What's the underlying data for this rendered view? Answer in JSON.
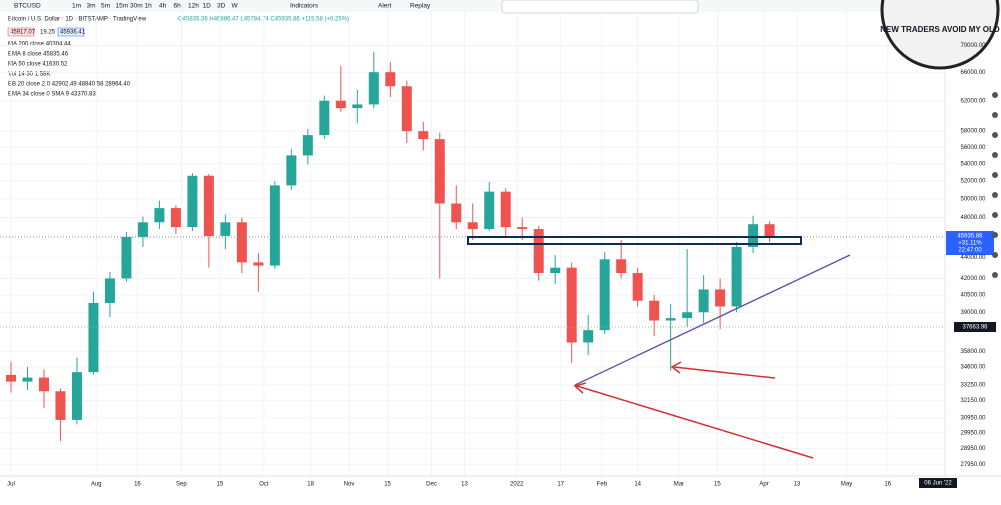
{
  "toolbar": {
    "symbol": "BTCUSD",
    "intervals": [
      "1m",
      "3m",
      "5m",
      "15m",
      "30m",
      "1h",
      "4h",
      "6h",
      "12h",
      "1D",
      "3D",
      "W"
    ],
    "indicators": "Indicators",
    "alert": "Alert",
    "replay": "Replay"
  },
  "legend": {
    "title": "Bitcoin / U.S. Dollar · 1D · BITSTAMP · TradingView",
    "ohlc": "O45835.36 H46886.47 L45784.74 C45935.86 +115.58 (+0.25%)",
    "bid": "45917.07",
    "spread": "19.25",
    "ask": "45936.41",
    "studies": [
      "MA 200 close 40304.44",
      "EMA 8 close 45835.46",
      "MA 50 close 41630.52",
      "Vol 14 30 1.58K",
      "BB 20 close 2 0 42902.49 48840.58 28964.40",
      "EMA 34 close 0 SMA 9 43370.83"
    ]
  },
  "price_labels": {
    "last": "45935.86",
    "change": "+31.11%",
    "countdown": "22:47:00",
    "marker": "37663.96"
  },
  "date_label": "06 Jun '22",
  "logo": "NEW TRADERS AVOID MY OLD",
  "chart_data": {
    "type": "candlestick",
    "log_scale": true,
    "grid": true,
    "up_color": "#26a69a",
    "down_color": "#ef5350",
    "x": [
      0,
      6,
      12,
      18,
      24,
      30,
      36,
      42,
      48,
      54,
      60,
      66,
      72,
      78,
      84,
      90,
      96,
      102,
      108,
      114,
      120,
      126,
      132,
      138,
      144,
      150,
      156,
      162,
      168,
      174,
      180,
      186,
      192,
      198,
      204,
      210,
      216,
      222,
      228,
      234,
      240,
      246,
      252,
      258,
      264,
      270,
      276
    ],
    "open": [
      34000,
      33500,
      33800,
      32800,
      30800,
      34200,
      39800,
      42000,
      46000,
      47500,
      49000,
      47000,
      52600,
      46100,
      47500,
      43500,
      43200,
      51500,
      55000,
      57500,
      62000,
      61000,
      61500,
      66000,
      64000,
      58000,
      57000,
      49500,
      47500,
      46800,
      50800,
      47000,
      46800,
      42500,
      43000,
      36500,
      37500,
      43800,
      42500,
      40000,
      38300,
      38500,
      39000,
      41000,
      39500,
      45000,
      47300
    ],
    "high": [
      35000,
      34600,
      34400,
      33000,
      35300,
      40800,
      42600,
      46500,
      48100,
      49800,
      49300,
      52900,
      52800,
      48300,
      48000,
      44400,
      52000,
      55800,
      58300,
      62700,
      66900,
      63500,
      69000,
      67500,
      64800,
      59200,
      57800,
      51500,
      49500,
      51900,
      51200,
      48000,
      47100,
      44200,
      43500,
      38800,
      44500,
      45700,
      43000,
      40500,
      39700,
      44800,
      42300,
      42000,
      45500,
      48200,
      47600
    ],
    "low": [
      32700,
      32900,
      31600,
      29400,
      30500,
      34000,
      38600,
      41700,
      45000,
      46800,
      46300,
      46600,
      43000,
      44800,
      42500,
      40800,
      42900,
      51000,
      53900,
      57000,
      60500,
      59000,
      61000,
      62500,
      56500,
      55600,
      42000,
      46800,
      45700,
      46600,
      46000,
      45700,
      41800,
      41500,
      34900,
      35500,
      37200,
      42000,
      39500,
      37000,
      34300,
      37800,
      38100,
      37600,
      39000,
      44400,
      45500
    ],
    "close": [
      33500,
      33800,
      32800,
      30800,
      34200,
      39800,
      42000,
      46000,
      47500,
      49000,
      47000,
      52600,
      46100,
      47500,
      43500,
      43200,
      51500,
      55000,
      57500,
      62000,
      61000,
      61500,
      66000,
      64000,
      58000,
      57000,
      49500,
      47500,
      46800,
      50800,
      47000,
      46800,
      42500,
      43000,
      36500,
      37500,
      43800,
      42500,
      40000,
      38300,
      38500,
      39000,
      41000,
      39500,
      45000,
      47300,
      45935.86
    ],
    "xlim": [
      -4,
      338
    ],
    "ylim": [
      27300,
      74000
    ],
    "xticks": [
      {
        "value": 0,
        "label": "Jul"
      },
      {
        "value": 31,
        "label": "Aug"
      },
      {
        "value": 46,
        "label": "16"
      },
      {
        "value": 62,
        "label": "Sep"
      },
      {
        "value": 76,
        "label": "15"
      },
      {
        "value": 92,
        "label": "Oct"
      },
      {
        "value": 109,
        "label": "18"
      },
      {
        "value": 123,
        "label": "Nov"
      },
      {
        "value": 137,
        "label": "15"
      },
      {
        "value": 153,
        "label": "Dec"
      },
      {
        "value": 165,
        "label": "13"
      },
      {
        "value": 184,
        "label": "2022"
      },
      {
        "value": 200,
        "label": "17"
      },
      {
        "value": 215,
        "label": "Feb"
      },
      {
        "value": 228,
        "label": "14"
      },
      {
        "value": 243,
        "label": "Mar"
      },
      {
        "value": 257,
        "label": "15"
      },
      {
        "value": 274,
        "label": "Apr"
      },
      {
        "value": 286,
        "label": "13"
      },
      {
        "value": 304,
        "label": "May"
      },
      {
        "value": 319,
        "label": "16"
      }
    ],
    "yticks": [
      {
        "value": 70000,
        "label": "70000.00"
      },
      {
        "value": 66000,
        "label": "66000.00"
      },
      {
        "value": 62000,
        "label": "62000.00"
      },
      {
        "value": 58000,
        "label": "58000.00"
      },
      {
        "value": 56000,
        "label": "56000.00"
      },
      {
        "value": 54000,
        "label": "54000.00"
      },
      {
        "value": 52000,
        "label": "52000.00"
      },
      {
        "value": 50000,
        "label": "50000.00"
      },
      {
        "value": 48000,
        "label": "48000.00"
      },
      {
        "value": 44000,
        "label": "44000.00"
      },
      {
        "value": 42000,
        "label": "42000.00"
      },
      {
        "value": 40500,
        "label": "40500.00"
      },
      {
        "value": 39000,
        "label": "39000.00"
      },
      {
        "value": 35800,
        "label": "35800.00"
      },
      {
        "value": 34600,
        "label": "34600.00"
      },
      {
        "value": 33250,
        "label": "33250.00"
      },
      {
        "value": 32150,
        "label": "32150.00"
      },
      {
        "value": 30950,
        "label": "30950.00"
      },
      {
        "value": 29950,
        "label": "29950.00"
      },
      {
        "value": 28950,
        "label": "28950.00"
      },
      {
        "value": 27950,
        "label": "27950.00"
      }
    ]
  }
}
